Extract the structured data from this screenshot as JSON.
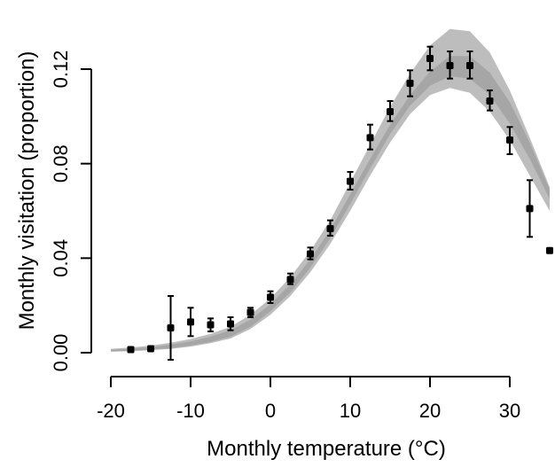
{
  "chart_data": {
    "type": "scatter",
    "xlabel": "Monthly temperature (°C)",
    "ylabel": "Monthly visitation (proportion)",
    "xlim": [
      -20,
      35
    ],
    "ylim": [
      0,
      0.14
    ],
    "x_ticks": [
      -20,
      -10,
      0,
      10,
      20,
      30
    ],
    "x_tick_labels": [
      "-20",
      "-10",
      "0",
      "10",
      "20",
      "30"
    ],
    "y_ticks": [
      0.0,
      0.04,
      0.08,
      0.12
    ],
    "y_tick_labels": [
      "0.00",
      "0.04",
      "0.08",
      "0.12"
    ],
    "grid": false,
    "legend": "none",
    "colors": {
      "points": "#000000",
      "band_outer": "#bdbdbd",
      "band_inner": "#a6a6a6",
      "axis": "#000000"
    },
    "points": [
      {
        "x": -17.5,
        "y": 0.0013,
        "lo": 0.001,
        "hi": 0.0016
      },
      {
        "x": -15.0,
        "y": 0.0017,
        "lo": 0.0014,
        "hi": 0.002
      },
      {
        "x": -12.5,
        "y": 0.0105,
        "lo": -0.003,
        "hi": 0.024
      },
      {
        "x": -10.0,
        "y": 0.013,
        "lo": 0.007,
        "hi": 0.019
      },
      {
        "x": -7.5,
        "y": 0.0118,
        "lo": 0.009,
        "hi": 0.0145
      },
      {
        "x": -5.0,
        "y": 0.0122,
        "lo": 0.0095,
        "hi": 0.015
      },
      {
        "x": -2.5,
        "y": 0.017,
        "lo": 0.015,
        "hi": 0.019
      },
      {
        "x": 0.0,
        "y": 0.0235,
        "lo": 0.021,
        "hi": 0.026
      },
      {
        "x": 2.5,
        "y": 0.031,
        "lo": 0.029,
        "hi": 0.0335
      },
      {
        "x": 5.0,
        "y": 0.0418,
        "lo": 0.0395,
        "hi": 0.0445
      },
      {
        "x": 7.5,
        "y": 0.0525,
        "lo": 0.0495,
        "hi": 0.056
      },
      {
        "x": 10.0,
        "y": 0.0725,
        "lo": 0.069,
        "hi": 0.0765
      },
      {
        "x": 12.5,
        "y": 0.091,
        "lo": 0.086,
        "hi": 0.0965
      },
      {
        "x": 15.0,
        "y": 0.102,
        "lo": 0.098,
        "hi": 0.1065
      },
      {
        "x": 17.5,
        "y": 0.114,
        "lo": 0.1085,
        "hi": 0.1195
      },
      {
        "x": 20.0,
        "y": 0.1245,
        "lo": 0.1195,
        "hi": 0.1295
      },
      {
        "x": 22.5,
        "y": 0.1215,
        "lo": 0.116,
        "hi": 0.1275
      },
      {
        "x": 25.0,
        "y": 0.1215,
        "lo": 0.116,
        "hi": 0.1275
      },
      {
        "x": 27.5,
        "y": 0.1065,
        "lo": 0.1025,
        "hi": 0.111
      },
      {
        "x": 30.0,
        "y": 0.09,
        "lo": 0.084,
        "hi": 0.0955
      },
      {
        "x": 32.5,
        "y": 0.061,
        "lo": 0.049,
        "hi": 0.073
      },
      {
        "x": 35.0,
        "y": 0.0432,
        "lo": 0.0432,
        "hi": 0.0432
      }
    ],
    "fitted_band": {
      "x": [
        -20,
        -17.5,
        -15,
        -12.5,
        -10,
        -7.5,
        -5,
        -2.5,
        0,
        2.5,
        5,
        7.5,
        10,
        12.5,
        15,
        17.5,
        20,
        22.5,
        25,
        27.5,
        30,
        32.5,
        35
      ],
      "outer_lo": [
        0.0004,
        0.0006,
        0.001,
        0.0016,
        0.0026,
        0.004,
        0.006,
        0.01,
        0.016,
        0.024,
        0.034,
        0.046,
        0.06,
        0.075,
        0.089,
        0.101,
        0.109,
        0.112,
        0.11,
        0.102,
        0.09,
        0.075,
        0.06
      ],
      "outer_hi": [
        0.0016,
        0.0022,
        0.003,
        0.0042,
        0.0058,
        0.008,
        0.011,
        0.016,
        0.023,
        0.032,
        0.043,
        0.056,
        0.072,
        0.088,
        0.104,
        0.118,
        0.13,
        0.137,
        0.136,
        0.127,
        0.111,
        0.091,
        0.07
      ],
      "inner_lo": [
        0.0006,
        0.0009,
        0.0013,
        0.0019,
        0.003,
        0.0045,
        0.0068,
        0.011,
        0.0175,
        0.0255,
        0.036,
        0.0485,
        0.063,
        0.078,
        0.0925,
        0.1045,
        0.113,
        0.117,
        0.116,
        0.109,
        0.097,
        0.082,
        0.065
      ],
      "inner_hi": [
        0.0012,
        0.0017,
        0.0024,
        0.0034,
        0.0048,
        0.0068,
        0.0095,
        0.014,
        0.0205,
        0.029,
        0.0395,
        0.052,
        0.067,
        0.082,
        0.0965,
        0.109,
        0.119,
        0.1255,
        0.1255,
        0.1185,
        0.106,
        0.089,
        0.069
      ]
    }
  }
}
